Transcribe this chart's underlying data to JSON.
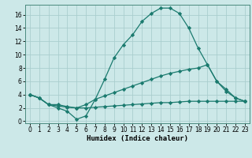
{
  "xlabel": "Humidex (Indice chaleur)",
  "background_color": "#cce8e8",
  "line_color": "#1a7a6e",
  "grid_color": "#aacece",
  "xlim": [
    -0.5,
    23.5
  ],
  "ylim": [
    -0.3,
    17.5
  ],
  "xticks": [
    0,
    1,
    2,
    3,
    4,
    5,
    6,
    7,
    8,
    9,
    10,
    11,
    12,
    13,
    14,
    15,
    16,
    17,
    18,
    19,
    20,
    21,
    22,
    23
  ],
  "yticks": [
    0,
    2,
    4,
    6,
    8,
    10,
    12,
    14,
    16
  ],
  "series": [
    {
      "x": [
        0,
        1,
        2,
        3,
        4,
        5,
        6,
        7,
        8,
        9,
        10,
        11,
        12,
        13,
        14,
        15,
        16,
        17,
        18,
        19,
        20,
        21,
        22,
        23
      ],
      "y": [
        4,
        3.5,
        2.5,
        2.0,
        1.5,
        0.3,
        0.8,
        3.3,
        6.3,
        9.5,
        11.5,
        13.0,
        15.0,
        16.2,
        17.0,
        17.0,
        16.2,
        14.0,
        11.0,
        8.5,
        6.0,
        4.5,
        3.5,
        3.0
      ]
    },
    {
      "x": [
        0,
        1,
        2,
        3,
        4,
        5,
        6,
        7,
        8,
        9,
        10,
        11,
        12,
        13,
        14,
        15,
        16,
        17,
        18,
        19,
        20,
        21,
        22,
        23
      ],
      "y": [
        4,
        3.5,
        2.5,
        2.5,
        2.2,
        2.0,
        2.5,
        3.3,
        3.8,
        4.3,
        4.8,
        5.3,
        5.8,
        6.3,
        6.8,
        7.2,
        7.5,
        7.8,
        8.0,
        8.5,
        6.0,
        4.8,
        3.5,
        3.0
      ]
    },
    {
      "x": [
        0,
        1,
        2,
        3,
        4,
        5,
        6,
        7,
        8,
        9,
        10,
        11,
        12,
        13,
        14,
        15,
        16,
        17,
        18,
        19,
        20,
        21,
        22,
        23
      ],
      "y": [
        4,
        3.5,
        2.5,
        2.3,
        2.1,
        2.0,
        2.0,
        2.1,
        2.2,
        2.3,
        2.4,
        2.5,
        2.6,
        2.7,
        2.8,
        2.8,
        2.9,
        3.0,
        3.0,
        3.0,
        3.0,
        3.0,
        3.0,
        3.0
      ]
    }
  ],
  "tick_fontsize": 5.5,
  "label_fontsize": 6.5
}
